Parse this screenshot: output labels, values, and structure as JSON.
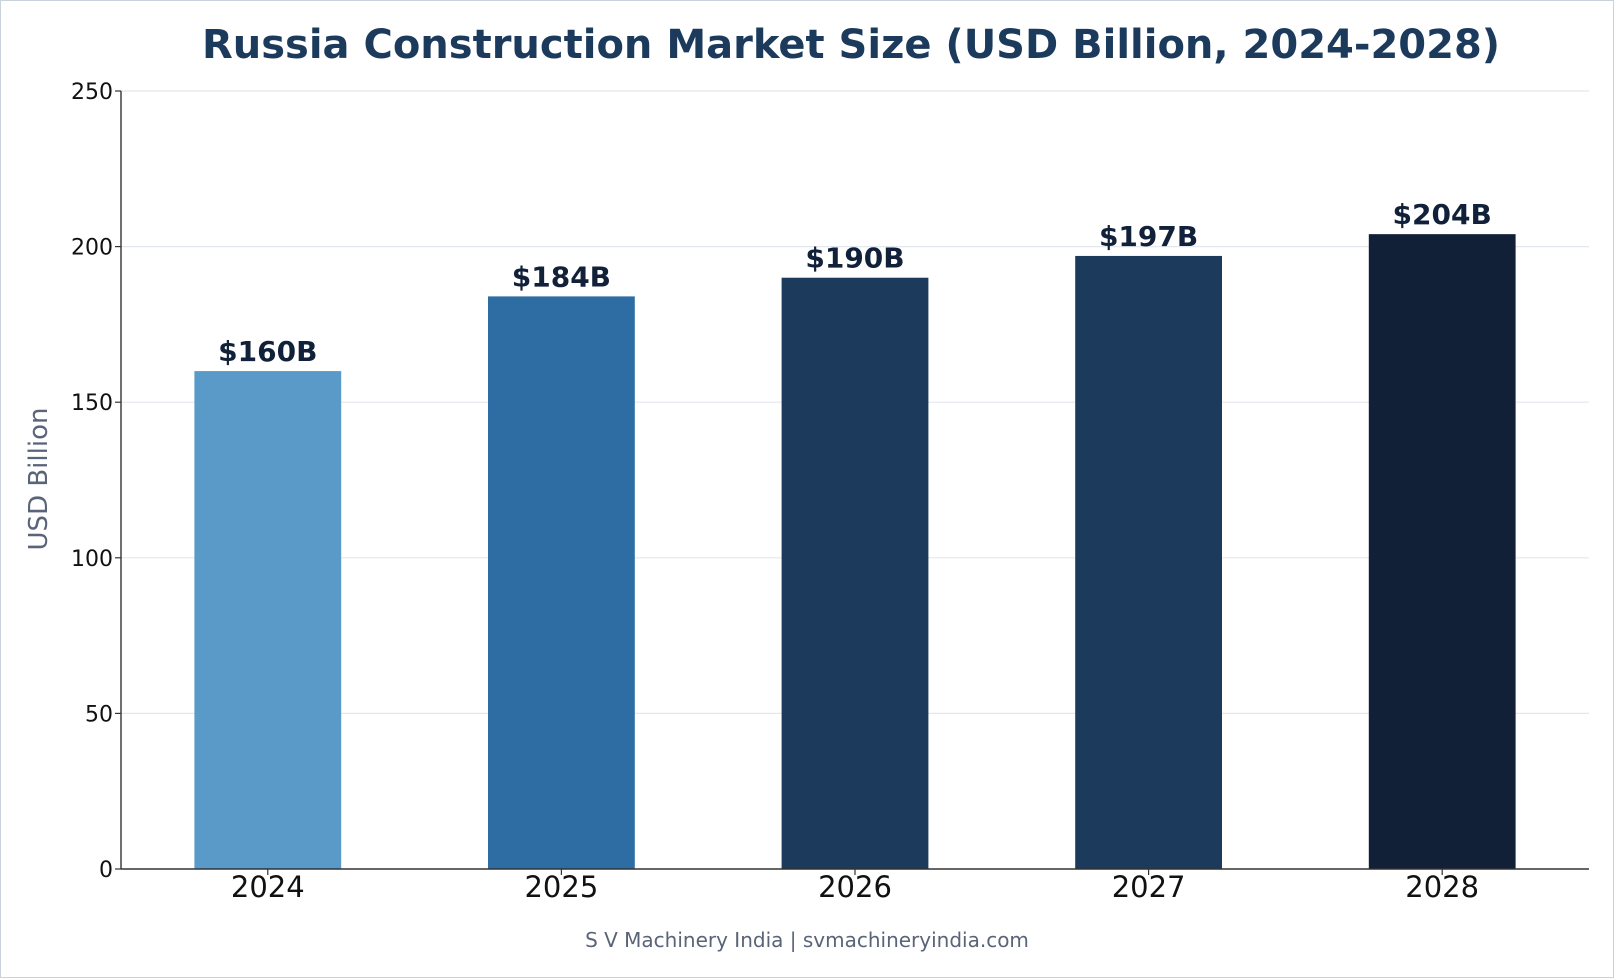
{
  "chart_data": {
    "type": "bar",
    "title": "Russia Construction Market Size (USD Billion, 2024-2028)",
    "xlabel": "",
    "ylabel": "USD Billion",
    "categories": [
      "2024",
      "2025",
      "2026",
      "2027",
      "2028"
    ],
    "values": [
      160,
      184,
      190,
      197,
      204
    ],
    "data_labels": [
      "$160B",
      "$184B",
      "$190B",
      "$197B",
      "$204B"
    ],
    "bar_colors": [
      "#5a9ac9",
      "#2e6da3",
      "#1b3a5c",
      "#1b3a5c",
      "#112037"
    ],
    "ylim": [
      0,
      250
    ],
    "yticks": [
      0,
      50,
      100,
      150,
      200,
      250
    ],
    "grid": "horizontal",
    "legend": "none"
  },
  "footer": "S V Machinery India | svmachineryindia.com"
}
